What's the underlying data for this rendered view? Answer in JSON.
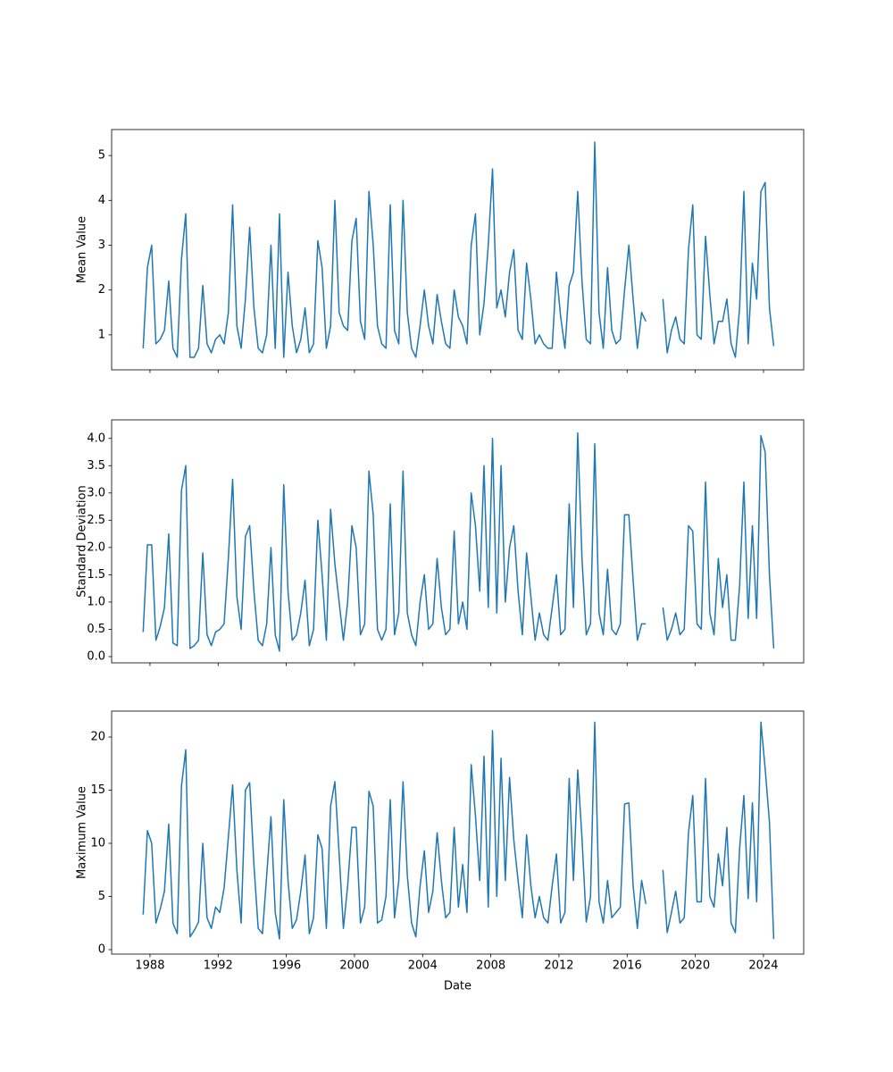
{
  "chart_data": [
    {
      "type": "line",
      "ylabel": "Mean Value",
      "color": "#1f77b4",
      "show_xtick_labels": false,
      "xlim": [
        1985.75,
        2026.36
      ],
      "xticks": [
        1988,
        1992,
        1996,
        2000,
        2004,
        2008,
        2012,
        2016,
        2020,
        2024
      ],
      "ylim": [
        0.22,
        5.58
      ],
      "yticks": [
        1,
        2,
        3,
        4,
        5
      ],
      "x": [
        1987.6,
        1987.85,
        1988.1,
        1988.35,
        1988.6,
        1988.85,
        1989.1,
        1989.35,
        1989.6,
        1989.85,
        1990.1,
        1990.35,
        1990.6,
        1990.85,
        1991.1,
        1991.35,
        1991.6,
        1991.85,
        1992.1,
        1992.35,
        1992.6,
        1992.85,
        1993.1,
        1993.35,
        1993.6,
        1993.85,
        1994.1,
        1994.35,
        1994.6,
        1994.85,
        1995.1,
        1995.35,
        1995.6,
        1995.85,
        1996.1,
        1996.35,
        1996.6,
        1996.85,
        1997.1,
        1997.35,
        1997.6,
        1997.85,
        1998.1,
        1998.35,
        1998.6,
        1998.85,
        1999.1,
        1999.35,
        1999.6,
        1999.85,
        2000.1,
        2000.35,
        2000.6,
        2000.85,
        2001.1,
        2001.35,
        2001.6,
        2001.85,
        2002.1,
        2002.35,
        2002.6,
        2002.85,
        2003.1,
        2003.35,
        2003.6,
        2003.85,
        2004.1,
        2004.35,
        2004.6,
        2004.85,
        2005.1,
        2005.35,
        2005.6,
        2005.85,
        2006.1,
        2006.35,
        2006.6,
        2006.85,
        2007.1,
        2007.35,
        2007.6,
        2007.85,
        2008.1,
        2008.35,
        2008.6,
        2008.85,
        2009.1,
        2009.35,
        2009.6,
        2009.85,
        2010.1,
        2010.35,
        2010.6,
        2010.85,
        2011.1,
        2011.35,
        2011.6,
        2011.85,
        2012.1,
        2012.35,
        2012.6,
        2012.85,
        2013.1,
        2013.35,
        2013.6,
        2013.85,
        2014.1,
        2014.35,
        2014.6,
        2014.85,
        2015.1,
        2015.35,
        2015.6,
        2015.85,
        2016.1,
        2016.35,
        2016.6,
        2016.85,
        2017.1,
        2017.35,
        2017.6,
        2017.85,
        2018.1,
        2018.35,
        2018.6,
        2018.85,
        2019.1,
        2019.35,
        2019.6,
        2019.85,
        2020.1,
        2020.35,
        2020.6,
        2020.85,
        2021.1,
        2021.35,
        2021.6,
        2021.85,
        2022.1,
        2022.35,
        2022.6,
        2022.85,
        2023.1,
        2023.35,
        2023.6,
        2023.85,
        2024.1,
        2024.35,
        2024.6
      ],
      "values": [
        0.7,
        2.5,
        3.0,
        0.8,
        0.9,
        1.1,
        2.2,
        0.7,
        0.5,
        2.7,
        3.7,
        0.5,
        0.5,
        0.7,
        2.1,
        0.8,
        0.6,
        0.9,
        1.0,
        0.8,
        1.5,
        3.9,
        1.2,
        0.7,
        1.8,
        3.4,
        1.6,
        0.7,
        0.6,
        1.0,
        3.0,
        0.7,
        3.7,
        0.5,
        2.4,
        1.2,
        0.6,
        0.9,
        1.6,
        0.6,
        0.8,
        3.1,
        2.5,
        0.7,
        1.2,
        4.0,
        1.5,
        1.2,
        1.1,
        3.1,
        3.6,
        1.3,
        0.9,
        4.2,
        3.0,
        1.2,
        0.8,
        0.7,
        3.9,
        1.1,
        0.8,
        4.0,
        1.5,
        0.7,
        0.5,
        1.2,
        2.0,
        1.2,
        0.8,
        1.9,
        1.3,
        0.8,
        0.7,
        2.0,
        1.4,
        1.2,
        0.8,
        3.0,
        3.7,
        1.0,
        1.7,
        3.0,
        4.7,
        1.6,
        2.0,
        1.4,
        2.4,
        2.9,
        1.1,
        0.9,
        2.6,
        1.8,
        0.8,
        1.0,
        0.8,
        0.7,
        0.7,
        2.4,
        1.4,
        0.7,
        2.1,
        2.4,
        4.2,
        2.2,
        0.9,
        0.8,
        5.3,
        1.5,
        0.7,
        2.5,
        1.1,
        0.8,
        0.9,
        2.0,
        3.0,
        1.8,
        0.7,
        1.5,
        1.3,
        null,
        null,
        null,
        1.8,
        0.6,
        1.1,
        1.4,
        0.9,
        0.8,
        2.9,
        3.9,
        1.0,
        0.9,
        3.2,
        1.9,
        0.8,
        1.3,
        1.3,
        1.8,
        0.8,
        0.5,
        1.6,
        4.2,
        0.8,
        2.6,
        1.8,
        4.2,
        4.4,
        1.6,
        0.75
      ]
    },
    {
      "type": "line",
      "ylabel": "Standard Deviation",
      "color": "#1f77b4",
      "show_xtick_labels": false,
      "xlim": [
        1985.75,
        2026.36
      ],
      "xticks": [
        1988,
        1992,
        1996,
        2000,
        2004,
        2008,
        2012,
        2016,
        2020,
        2024
      ],
      "ylim": [
        -0.115,
        4.34
      ],
      "yticks": [
        {
          "value": 0,
          "label": "0.0"
        },
        0.5,
        {
          "value": 1,
          "label": "1.0"
        },
        1.5,
        {
          "value": 2,
          "label": "2.0"
        },
        2.5,
        {
          "value": 3,
          "label": "3.0"
        },
        3.5,
        {
          "value": 4,
          "label": "4.0"
        }
      ],
      "x": [
        1987.6,
        1987.85,
        1988.1,
        1988.35,
        1988.6,
        1988.85,
        1989.1,
        1989.35,
        1989.6,
        1989.85,
        1990.1,
        1990.35,
        1990.6,
        1990.85,
        1991.1,
        1991.35,
        1991.6,
        1991.85,
        1992.1,
        1992.35,
        1992.6,
        1992.85,
        1993.1,
        1993.35,
        1993.6,
        1993.85,
        1994.1,
        1994.35,
        1994.6,
        1994.85,
        1995.1,
        1995.35,
        1995.6,
        1995.85,
        1996.1,
        1996.35,
        1996.6,
        1996.85,
        1997.1,
        1997.35,
        1997.6,
        1997.85,
        1998.1,
        1998.35,
        1998.6,
        1998.85,
        1999.1,
        1999.35,
        1999.6,
        1999.85,
        2000.1,
        2000.35,
        2000.6,
        2000.85,
        2001.1,
        2001.35,
        2001.6,
        2001.85,
        2002.1,
        2002.35,
        2002.6,
        2002.85,
        2003.1,
        2003.35,
        2003.6,
        2003.85,
        2004.1,
        2004.35,
        2004.6,
        2004.85,
        2005.1,
        2005.35,
        2005.6,
        2005.85,
        2006.1,
        2006.35,
        2006.6,
        2006.85,
        2007.1,
        2007.35,
        2007.6,
        2007.85,
        2008.1,
        2008.35,
        2008.6,
        2008.85,
        2009.1,
        2009.35,
        2009.6,
        2009.85,
        2010.1,
        2010.35,
        2010.6,
        2010.85,
        2011.1,
        2011.35,
        2011.6,
        2011.85,
        2012.1,
        2012.35,
        2012.6,
        2012.85,
        2013.1,
        2013.35,
        2013.6,
        2013.85,
        2014.1,
        2014.35,
        2014.6,
        2014.85,
        2015.1,
        2015.35,
        2015.6,
        2015.85,
        2016.1,
        2016.35,
        2016.6,
        2016.85,
        2017.1,
        2017.35,
        2017.6,
        2017.85,
        2018.1,
        2018.35,
        2018.6,
        2018.85,
        2019.1,
        2019.35,
        2019.6,
        2019.85,
        2020.1,
        2020.35,
        2020.6,
        2020.85,
        2021.1,
        2021.35,
        2021.6,
        2021.85,
        2022.1,
        2022.35,
        2022.6,
        2022.85,
        2023.1,
        2023.35,
        2023.6,
        2023.85,
        2024.1,
        2024.35,
        2024.6
      ],
      "values": [
        0.45,
        2.05,
        2.05,
        0.3,
        0.55,
        0.9,
        2.25,
        0.25,
        0.2,
        3.05,
        3.5,
        0.15,
        0.2,
        0.3,
        1.9,
        0.4,
        0.2,
        0.45,
        0.5,
        0.6,
        1.8,
        3.25,
        1.1,
        0.5,
        2.2,
        2.4,
        1.2,
        0.3,
        0.2,
        0.6,
        2.0,
        0.4,
        0.1,
        3.15,
        1.2,
        0.3,
        0.4,
        0.8,
        1.4,
        0.2,
        0.5,
        2.5,
        1.5,
        0.3,
        2.7,
        1.7,
        1.0,
        0.3,
        1.0,
        2.4,
        2.0,
        0.4,
        0.6,
        3.4,
        2.6,
        0.5,
        0.3,
        0.5,
        2.8,
        0.4,
        0.8,
        3.4,
        0.8,
        0.4,
        0.2,
        1.0,
        1.5,
        0.5,
        0.6,
        1.8,
        0.9,
        0.4,
        0.5,
        2.3,
        0.6,
        1.0,
        0.5,
        3.0,
        2.4,
        1.2,
        3.5,
        0.9,
        4.0,
        0.8,
        3.5,
        1.0,
        2.0,
        2.4,
        1.2,
        0.4,
        1.9,
        1.1,
        0.3,
        0.8,
        0.4,
        0.3,
        0.9,
        1.5,
        0.4,
        0.5,
        2.8,
        0.9,
        4.1,
        1.8,
        0.4,
        0.6,
        3.9,
        0.8,
        0.4,
        1.6,
        0.5,
        0.4,
        0.6,
        2.6,
        2.6,
        1.4,
        0.3,
        0.6,
        0.6,
        null,
        null,
        null,
        0.9,
        0.3,
        0.5,
        0.8,
        0.4,
        0.5,
        2.4,
        2.3,
        0.6,
        0.5,
        3.2,
        0.8,
        0.4,
        1.8,
        0.9,
        1.5,
        0.3,
        0.3,
        1.3,
        3.2,
        0.7,
        2.4,
        0.7,
        4.05,
        3.75,
        1.5,
        0.15
      ]
    },
    {
      "type": "line",
      "ylabel": "Maximum Value",
      "xlabel": "Date",
      "color": "#1f77b4",
      "show_xtick_labels": true,
      "xlim": [
        1985.75,
        2026.36
      ],
      "xticks": [
        1988,
        1992,
        1996,
        2000,
        2004,
        2008,
        2012,
        2016,
        2020,
        2024
      ],
      "ylim": [
        -0.42,
        22.44
      ],
      "yticks": [
        0,
        5,
        10,
        15,
        20
      ],
      "x": [
        1987.6,
        1987.85,
        1988.1,
        1988.35,
        1988.6,
        1988.85,
        1989.1,
        1989.35,
        1989.6,
        1989.85,
        1990.1,
        1990.35,
        1990.6,
        1990.85,
        1991.1,
        1991.35,
        1991.6,
        1991.85,
        1992.1,
        1992.35,
        1992.6,
        1992.85,
        1993.1,
        1993.35,
        1993.6,
        1993.85,
        1994.1,
        1994.35,
        1994.6,
        1994.85,
        1995.1,
        1995.35,
        1995.6,
        1995.85,
        1996.1,
        1996.35,
        1996.6,
        1996.85,
        1997.1,
        1997.35,
        1997.6,
        1997.85,
        1998.1,
        1998.35,
        1998.6,
        1998.85,
        1999.1,
        1999.35,
        1999.6,
        1999.85,
        2000.1,
        2000.35,
        2000.6,
        2000.85,
        2001.1,
        2001.35,
        2001.6,
        2001.85,
        2002.1,
        2002.35,
        2002.6,
        2002.85,
        2003.1,
        2003.35,
        2003.6,
        2003.85,
        2004.1,
        2004.35,
        2004.6,
        2004.85,
        2005.1,
        2005.35,
        2005.6,
        2005.85,
        2006.1,
        2006.35,
        2006.6,
        2006.85,
        2007.1,
        2007.35,
        2007.6,
        2007.85,
        2008.1,
        2008.35,
        2008.6,
        2008.85,
        2009.1,
        2009.35,
        2009.6,
        2009.85,
        2010.1,
        2010.35,
        2010.6,
        2010.85,
        2011.1,
        2011.35,
        2011.6,
        2011.85,
        2012.1,
        2012.35,
        2012.6,
        2012.85,
        2013.1,
        2013.35,
        2013.6,
        2013.85,
        2014.1,
        2014.35,
        2014.6,
        2014.85,
        2015.1,
        2015.35,
        2015.6,
        2015.85,
        2016.1,
        2016.35,
        2016.6,
        2016.85,
        2017.1,
        2017.35,
        2017.6,
        2017.85,
        2018.1,
        2018.35,
        2018.6,
        2018.85,
        2019.1,
        2019.35,
        2019.6,
        2019.85,
        2020.1,
        2020.35,
        2020.6,
        2020.85,
        2021.1,
        2021.35,
        2021.6,
        2021.85,
        2022.1,
        2022.35,
        2022.6,
        2022.85,
        2023.1,
        2023.35,
        2023.6,
        2023.85,
        2024.1,
        2024.35,
        2024.6
      ],
      "values": [
        3.3,
        11.2,
        10.0,
        2.5,
        3.8,
        5.5,
        11.8,
        2.5,
        1.5,
        15.4,
        18.8,
        1.2,
        1.8,
        2.6,
        10.0,
        3.0,
        2.0,
        4.0,
        3.5,
        5.8,
        10.6,
        15.5,
        7.5,
        2.5,
        15.0,
        15.7,
        8.0,
        2.0,
        1.5,
        7.0,
        12.5,
        3.5,
        1.0,
        14.1,
        6.5,
        2.0,
        2.8,
        5.5,
        8.9,
        1.5,
        3.0,
        10.8,
        9.5,
        2.0,
        13.5,
        15.8,
        9.0,
        2.0,
        6.0,
        11.5,
        11.5,
        2.5,
        4.0,
        14.9,
        13.5,
        2.5,
        2.8,
        5.0,
        14.1,
        3.0,
        6.5,
        15.8,
        7.0,
        2.5,
        1.2,
        6.0,
        9.3,
        3.5,
        5.5,
        11.0,
        6.5,
        3.0,
        3.5,
        11.5,
        4.0,
        8.0,
        3.5,
        17.4,
        12.6,
        6.5,
        18.2,
        4.0,
        20.6,
        5.0,
        18.0,
        6.5,
        16.2,
        10.3,
        6.5,
        3.0,
        10.8,
        6.0,
        3.0,
        5.0,
        3.0,
        2.5,
        6.0,
        9.0,
        2.5,
        3.5,
        16.1,
        6.5,
        16.9,
        10.5,
        2.6,
        5.0,
        21.4,
        4.5,
        2.5,
        6.5,
        3.0,
        3.5,
        4.0,
        13.7,
        13.8,
        6.0,
        2.0,
        6.5,
        4.3,
        null,
        null,
        null,
        7.5,
        1.6,
        3.5,
        5.5,
        2.5,
        3.0,
        11.0,
        14.5,
        4.5,
        4.5,
        16.1,
        5.0,
        4.0,
        9.0,
        6.0,
        11.5,
        2.5,
        1.6,
        9.5,
        14.5,
        4.8,
        13.8,
        4.5,
        21.4,
        17.0,
        12.0,
        1.0
      ]
    }
  ]
}
